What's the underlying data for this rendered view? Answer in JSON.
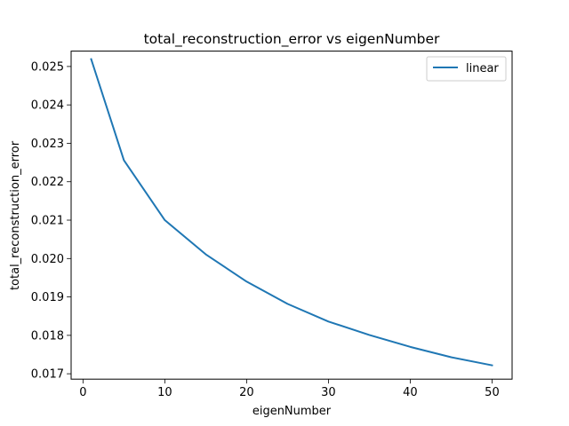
{
  "chart_data": {
    "type": "line",
    "title": "total_reconstruction_error vs eigenNumber",
    "xlabel": "eigenNumber",
    "ylabel": "total_reconstruction_error",
    "xlim": [
      -1.45,
      52.45
    ],
    "ylim": [
      0.01686,
      0.0254
    ],
    "xticks": [
      0,
      10,
      20,
      30,
      40,
      50
    ],
    "yticks": [
      0.017,
      0.018,
      0.019,
      0.02,
      0.021,
      0.022,
      0.023,
      0.024,
      0.025
    ],
    "ytick_labels": [
      "0.017",
      "0.018",
      "0.019",
      "0.020",
      "0.021",
      "0.022",
      "0.023",
      "0.024",
      "0.025"
    ],
    "grid": false,
    "legend_position": "top-right",
    "series": [
      {
        "name": "linear",
        "color": "#1f77b4",
        "x": [
          1,
          5,
          10,
          15,
          20,
          25,
          30,
          35,
          40,
          45,
          50
        ],
        "y": [
          0.02519,
          0.02256,
          0.021,
          0.02011,
          0.0194,
          0.01882,
          0.01836,
          0.01801,
          0.0177,
          0.01743,
          0.01722
        ]
      }
    ]
  }
}
